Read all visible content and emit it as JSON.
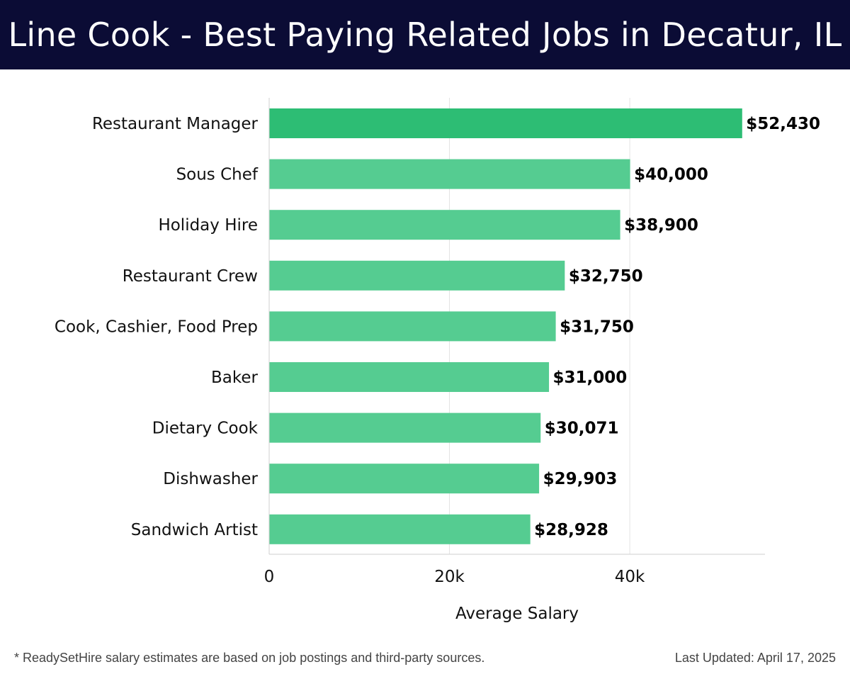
{
  "header": {
    "title": "Line Cook - Best Paying Related Jobs in Decatur, IL"
  },
  "footer": {
    "note": "* ReadySetHire salary estimates are based on job postings and third-party sources.",
    "updated": "Last Updated: April 17, 2025"
  },
  "chart_data": {
    "type": "bar",
    "orientation": "horizontal",
    "title": "Line Cook - Best Paying Related Jobs in Decatur, IL",
    "xlabel": "Average Salary",
    "ylabel": "",
    "xlim": [
      0,
      55000
    ],
    "grid": true,
    "categories": [
      "Restaurant Manager",
      "Sous Chef",
      "Holiday Hire",
      "Restaurant Crew",
      "Cook, Cashier, Food Prep",
      "Baker",
      "Dietary Cook",
      "Dishwasher",
      "Sandwich Artist"
    ],
    "values": [
      52430,
      40000,
      38900,
      32750,
      31750,
      31000,
      30071,
      29903,
      28928
    ],
    "value_labels": [
      "$52,430",
      "$40,000",
      "$38,900",
      "$32,750",
      "$31,750",
      "$31,000",
      "$30,071",
      "$29,903",
      "$28,928"
    ],
    "x_ticks": [
      0,
      20000,
      40000
    ],
    "x_tick_labels": [
      "0",
      "20k",
      "40k"
    ],
    "colors": {
      "bar_top": "#2dbd74",
      "bar": "#55cc91",
      "grid": "#e3e3e3",
      "axis": "#cfcfcf"
    }
  }
}
